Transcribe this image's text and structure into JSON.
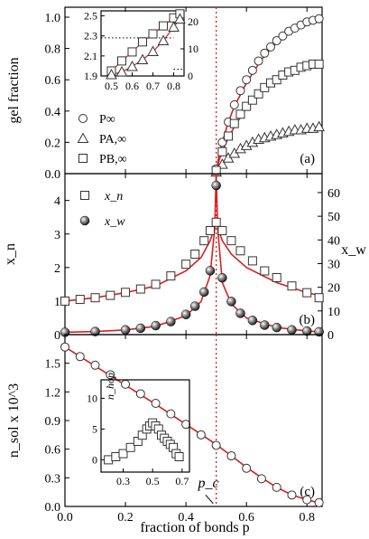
{
  "chart_data": [
    {
      "panel_label": "(a)",
      "type": "scatter",
      "ylabel": "gel fraction",
      "xlim": [
        0.0,
        0.85
      ],
      "ylim": [
        0.0,
        1.0
      ],
      "y_ticks": [
        "0.0",
        "0.2",
        "0.4",
        "0.6",
        "0.8",
        "1.0"
      ],
      "legend": [
        "P∞",
        "PA,∞",
        "PB,∞"
      ],
      "legend_position": "left",
      "series": [
        {
          "name": "P∞",
          "marker": "circle",
          "x": [
            0.5,
            0.52,
            0.54,
            0.56,
            0.58,
            0.6,
            0.62,
            0.64,
            0.66,
            0.68,
            0.7,
            0.72,
            0.74,
            0.76,
            0.78,
            0.8,
            0.82,
            0.84
          ],
          "y": [
            0.03,
            0.2,
            0.33,
            0.44,
            0.53,
            0.6,
            0.66,
            0.72,
            0.77,
            0.81,
            0.85,
            0.88,
            0.91,
            0.93,
            0.95,
            0.97,
            0.98,
            0.99
          ]
        },
        {
          "name": "PA,∞",
          "marker": "triangle",
          "x": [
            0.5,
            0.52,
            0.54,
            0.56,
            0.58,
            0.6,
            0.62,
            0.64,
            0.66,
            0.68,
            0.7,
            0.72,
            0.74,
            0.76,
            0.78,
            0.8,
            0.82,
            0.84
          ],
          "y": [
            0.01,
            0.06,
            0.1,
            0.13,
            0.16,
            0.18,
            0.2,
            0.22,
            0.23,
            0.24,
            0.25,
            0.26,
            0.27,
            0.28,
            0.28,
            0.29,
            0.29,
            0.3
          ]
        },
        {
          "name": "PB,∞",
          "marker": "square",
          "x": [
            0.5,
            0.52,
            0.54,
            0.56,
            0.58,
            0.6,
            0.62,
            0.64,
            0.66,
            0.68,
            0.7,
            0.72,
            0.74,
            0.76,
            0.78,
            0.8,
            0.82,
            0.84
          ],
          "y": [
            0.02,
            0.14,
            0.24,
            0.32,
            0.38,
            0.43,
            0.47,
            0.51,
            0.55,
            0.58,
            0.6,
            0.63,
            0.65,
            0.66,
            0.68,
            0.69,
            0.7,
            0.7
          ]
        }
      ],
      "fits": [
        {
          "x": [
            0.5,
            0.51,
            0.52,
            0.54,
            0.56,
            0.6,
            0.65,
            0.7,
            0.75,
            0.8,
            0.85
          ],
          "y": [
            0.0,
            0.13,
            0.2,
            0.33,
            0.43,
            0.58,
            0.73,
            0.84,
            0.91,
            0.96,
            0.98
          ]
        },
        {
          "x": [
            0.5,
            0.51,
            0.52,
            0.54,
            0.56,
            0.6,
            0.65,
            0.7,
            0.75,
            0.8,
            0.85
          ],
          "y": [
            0.0,
            0.09,
            0.14,
            0.23,
            0.3,
            0.42,
            0.52,
            0.6,
            0.65,
            0.68,
            0.7
          ]
        },
        {
          "x": [
            0.5,
            0.51,
            0.52,
            0.54,
            0.56,
            0.6,
            0.65,
            0.7,
            0.75,
            0.8,
            0.85
          ],
          "y": [
            0.0,
            0.04,
            0.06,
            0.1,
            0.13,
            0.17,
            0.21,
            0.24,
            0.26,
            0.28,
            0.29
          ]
        }
      ],
      "inset": {
        "x_ticks": [
          "0.5",
          "0.6",
          "0.7",
          "0.8"
        ],
        "xlim": [
          0.45,
          0.85
        ],
        "y_left_ticks": [
          "1.9",
          "2.1",
          "2.3",
          "2.5"
        ],
        "y_left_lim": [
          1.9,
          2.55
        ],
        "y_right_ticks": [
          "0",
          "10",
          "20"
        ],
        "y_right_lim": [
          0,
          24
        ],
        "series_left": {
          "x": [
            0.5,
            0.55,
            0.6,
            0.65,
            0.7,
            0.75,
            0.8,
            0.83
          ],
          "y": [
            1.95,
            2.05,
            2.14,
            2.24,
            2.32,
            2.4,
            2.48,
            2.52
          ]
        },
        "series_right": {
          "x": [
            0.5,
            0.55,
            0.6,
            0.65,
            0.7,
            0.75,
            0.8,
            0.83
          ],
          "y": [
            0.5,
            1.5,
            3.5,
            6.0,
            9.0,
            13.0,
            18.0,
            21.0
          ]
        }
      }
    },
    {
      "panel_label": "(b)",
      "type": "scatter",
      "ylabel": "x_n",
      "y2label": "x_w",
      "xlim": [
        0.0,
        0.85
      ],
      "ylim": [
        0.0,
        4.8
      ],
      "y_ticks": [
        "0",
        "1",
        "2",
        "3",
        "4"
      ],
      "y2lim": [
        0,
        68
      ],
      "y2_ticks": [
        "0",
        "10",
        "20",
        "30",
        "40",
        "50",
        "60"
      ],
      "legend": [
        "x_n",
        "x_w"
      ],
      "series": [
        {
          "name": "x_n",
          "marker": "square",
          "axis": "left",
          "x": [
            0.0,
            0.05,
            0.1,
            0.15,
            0.2,
            0.25,
            0.3,
            0.35,
            0.4,
            0.43,
            0.46,
            0.48,
            0.5,
            0.52,
            0.55,
            0.58,
            0.62,
            0.66,
            0.7,
            0.75,
            0.8,
            0.84
          ],
          "y": [
            1.0,
            1.05,
            1.1,
            1.17,
            1.26,
            1.36,
            1.5,
            1.75,
            2.1,
            2.4,
            2.8,
            3.1,
            3.35,
            3.1,
            2.8,
            2.5,
            2.2,
            1.9,
            1.7,
            1.45,
            1.25,
            1.1
          ]
        },
        {
          "name": "x_w",
          "marker": "sphere",
          "axis": "right",
          "x": [
            0.0,
            0.1,
            0.2,
            0.25,
            0.3,
            0.35,
            0.4,
            0.43,
            0.46,
            0.48,
            0.5,
            0.52,
            0.55,
            0.58,
            0.62,
            0.66,
            0.7,
            0.75,
            0.8,
            0.84
          ],
          "y": [
            1,
            1.3,
            2,
            2.7,
            3.8,
            5.5,
            8.5,
            12,
            18,
            27,
            63,
            24,
            14,
            9,
            6,
            4,
            3,
            2,
            1.5,
            1.2
          ]
        }
      ],
      "fits": [
        {
          "axis": "left",
          "x": [
            0.0,
            0.1,
            0.2,
            0.3,
            0.4,
            0.45,
            0.48,
            0.495,
            0.5,
            0.505,
            0.52,
            0.55,
            0.6,
            0.7,
            0.8,
            0.85
          ],
          "y": [
            1.0,
            1.1,
            1.25,
            1.45,
            1.9,
            2.3,
            2.8,
            3.2,
            3.5,
            3.2,
            2.8,
            2.4,
            2.0,
            1.55,
            1.25,
            1.15
          ]
        },
        {
          "axis": "right",
          "x": [
            0.0,
            0.1,
            0.2,
            0.3,
            0.4,
            0.45,
            0.48,
            0.495,
            0.5,
            0.505,
            0.52,
            0.55,
            0.6,
            0.7,
            0.8,
            0.85
          ],
          "y": [
            1,
            1.3,
            2,
            3.5,
            8,
            14,
            25,
            45,
            68,
            45,
            22,
            13,
            7,
            3,
            1.5,
            1.1
          ]
        }
      ]
    },
    {
      "panel_label": "(c)",
      "type": "scatter",
      "ylabel": "n_sol x 10^3",
      "xlabel": "fraction of bonds p",
      "xlim": [
        0.0,
        0.85
      ],
      "ylim": [
        0.0,
        1.8
      ],
      "x_ticks": [
        "0.0",
        "0.2",
        "0.4",
        "0.6",
        "0.8"
      ],
      "y_ticks": [
        "0.0",
        "0.3",
        "0.6",
        "0.9",
        "1.2",
        "1.5"
      ],
      "annotation": "p_c",
      "series": [
        {
          "name": "n_sol",
          "marker": "circle",
          "x": [
            0.0,
            0.05,
            0.1,
            0.15,
            0.2,
            0.25,
            0.3,
            0.35,
            0.4,
            0.45,
            0.5,
            0.55,
            0.6,
            0.65,
            0.7,
            0.75,
            0.8,
            0.84
          ],
          "y": [
            1.67,
            1.57,
            1.48,
            1.38,
            1.28,
            1.18,
            1.08,
            0.97,
            0.86,
            0.75,
            0.64,
            0.53,
            0.4,
            0.29,
            0.2,
            0.12,
            0.07,
            0.04
          ]
        }
      ],
      "fits": [
        {
          "x": [
            0.0,
            0.1,
            0.2,
            0.3,
            0.4,
            0.5,
            0.55,
            0.6,
            0.65,
            0.7,
            0.75,
            0.8,
            0.85
          ],
          "y": [
            1.67,
            1.47,
            1.27,
            1.07,
            0.86,
            0.65,
            0.53,
            0.41,
            0.3,
            0.2,
            0.12,
            0.07,
            0.03
          ]
        }
      ],
      "inset": {
        "ylabel": "n_hop",
        "x_ticks": [
          "0.3",
          "0.5",
          "0.7"
        ],
        "xlim": [
          0.15,
          0.75
        ],
        "y_ticks": [
          "0",
          "5",
          "10"
        ],
        "ylim": [
          -2,
          13
        ],
        "series": {
          "x": [
            0.2,
            0.25,
            0.3,
            0.35,
            0.4,
            0.43,
            0.46,
            0.48,
            0.5,
            0.52,
            0.54,
            0.56,
            0.58,
            0.6,
            0.62,
            0.64,
            0.66,
            0.68
          ],
          "y": [
            0,
            0.5,
            1,
            2,
            3,
            4,
            5,
            5.5,
            6,
            5.5,
            5,
            4,
            3.5,
            3,
            2.5,
            2,
            1,
            0.5
          ]
        }
      }
    }
  ],
  "shared": {
    "critical_p": 0.5,
    "line_color": "#dd1e1e",
    "marker_color": "#333333"
  }
}
